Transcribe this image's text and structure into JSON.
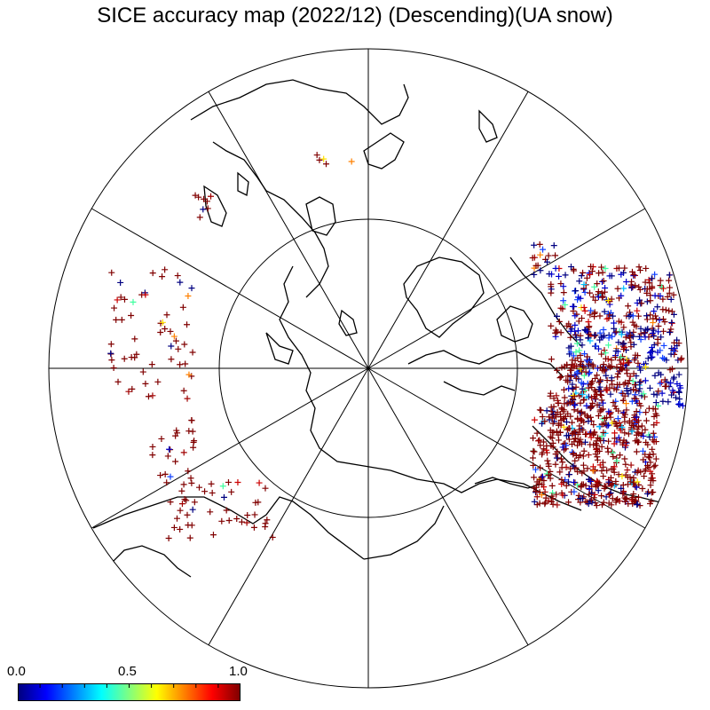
{
  "title": "SICE accuracy map (2022/12) (Descending)(UA snow)",
  "colorbar": {
    "min_label": "0.0",
    "mid_label": "0.5",
    "max_label": "1.0",
    "min": 0.0,
    "max": 1.0,
    "colors": [
      "#000080",
      "#0000ff",
      "#0080ff",
      "#00ffff",
      "#80ff80",
      "#ffff00",
      "#ff8000",
      "#ff0000",
      "#800000"
    ]
  },
  "map": {
    "projection": "north-polar-stereographic",
    "meridian_spokes": 12,
    "inner_circle": true,
    "land_outline_color": "#000000"
  }
}
